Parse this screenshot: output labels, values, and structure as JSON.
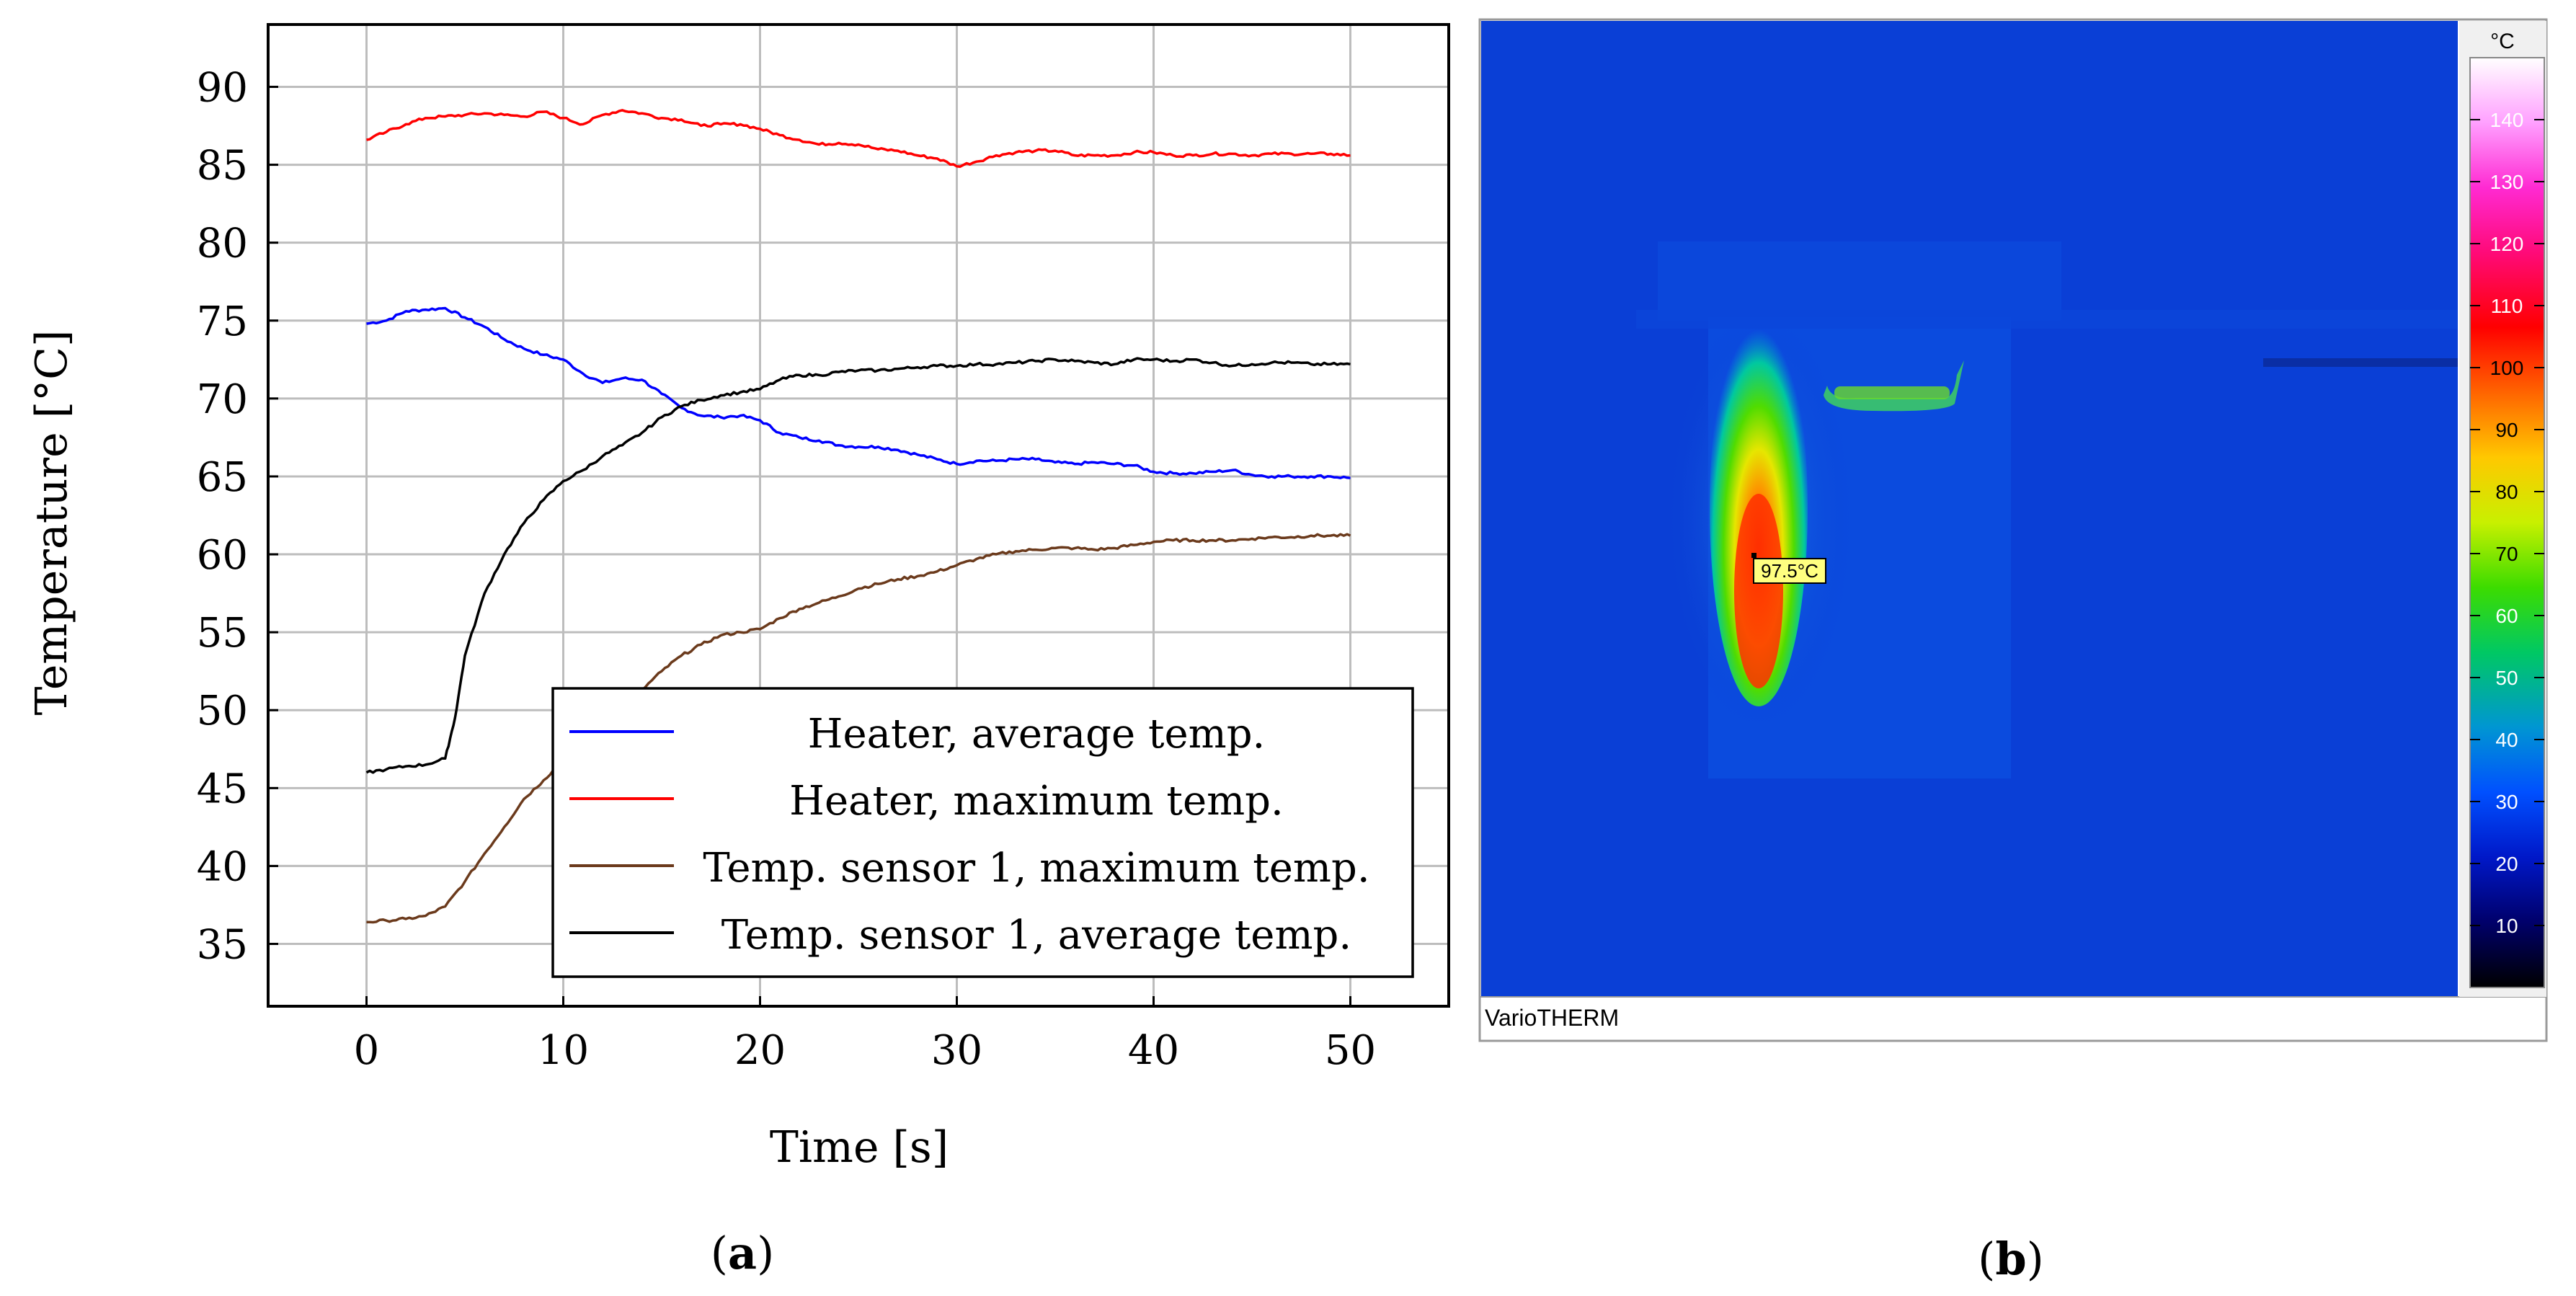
{
  "chart_data": [
    {
      "type": "line",
      "panel_label": "a",
      "xlabel": "Time [s]",
      "ylabel": "Temperature [°C]",
      "xlim": [
        -5,
        55
      ],
      "ylim": [
        31,
        94
      ],
      "xticks": [
        0,
        10,
        20,
        30,
        40,
        50
      ],
      "yticks": [
        35,
        40,
        45,
        50,
        55,
        60,
        65,
        70,
        75,
        80,
        85,
        90
      ],
      "grid": true,
      "legend_position": "bottom-right",
      "series": [
        {
          "name": "Heater, average temp.",
          "color": "#0000ff",
          "x": [
            0,
            1,
            2,
            3,
            4,
            5,
            6,
            7,
            8,
            9,
            10,
            11,
            12,
            13,
            14,
            15,
            16,
            17,
            18,
            19,
            20,
            21,
            22,
            23,
            24,
            25,
            26,
            27,
            28,
            29,
            30,
            31,
            32,
            33,
            34,
            35,
            36,
            37,
            38,
            39,
            40,
            41,
            42,
            43,
            44,
            45,
            46,
            47,
            48,
            49,
            50
          ],
          "y": [
            74.8,
            75.0,
            75.6,
            75.7,
            75.8,
            75.2,
            74.6,
            73.8,
            73.2,
            72.8,
            72.5,
            71.6,
            71.0,
            71.3,
            71.2,
            70.3,
            69.4,
            68.9,
            68.8,
            68.9,
            68.6,
            67.8,
            67.5,
            67.3,
            67.0,
            66.9,
            66.9,
            66.7,
            66.4,
            66.1,
            65.8,
            66.0,
            66.0,
            66.1,
            66.1,
            65.9,
            65.8,
            65.9,
            65.8,
            65.7,
            65.3,
            65.2,
            65.2,
            65.3,
            65.4,
            65.1,
            65.0,
            65.0,
            65.0,
            65.0,
            64.9
          ]
        },
        {
          "name": "Heater, maximum temp.",
          "color": "#ff0000",
          "x": [
            0,
            1,
            2,
            3,
            4,
            5,
            6,
            7,
            8,
            9,
            10,
            11,
            12,
            13,
            14,
            15,
            16,
            17,
            18,
            19,
            20,
            21,
            22,
            23,
            24,
            25,
            26,
            27,
            28,
            29,
            30,
            31,
            32,
            33,
            34,
            35,
            36,
            37,
            38,
            39,
            40,
            41,
            42,
            43,
            44,
            45,
            46,
            47,
            48,
            49,
            50
          ],
          "y": [
            86.6,
            87.1,
            87.6,
            88.0,
            88.1,
            88.2,
            88.3,
            88.2,
            88.1,
            88.4,
            88.0,
            87.6,
            88.2,
            88.5,
            88.3,
            88.0,
            87.9,
            87.5,
            87.6,
            87.6,
            87.3,
            86.9,
            86.6,
            86.3,
            86.4,
            86.3,
            86.0,
            85.9,
            85.6,
            85.4,
            84.9,
            85.2,
            85.6,
            85.8,
            85.9,
            85.9,
            85.6,
            85.6,
            85.6,
            85.8,
            85.8,
            85.6,
            85.6,
            85.7,
            85.7,
            85.6,
            85.7,
            85.7,
            85.7,
            85.7,
            85.6
          ]
        },
        {
          "name": "Temp. sensor 1, maximum temp.",
          "color": "#6b3a1c",
          "x": [
            0,
            1,
            2,
            3,
            4,
            5,
            6,
            7,
            8,
            9,
            10,
            11,
            12,
            13,
            14,
            15,
            16,
            17,
            18,
            19,
            20,
            21,
            22,
            23,
            24,
            25,
            26,
            27,
            28,
            29,
            30,
            31,
            32,
            33,
            34,
            35,
            36,
            37,
            38,
            39,
            40,
            41,
            42,
            43,
            44,
            45,
            46,
            47,
            48,
            49,
            50
          ],
          "y": [
            36.4,
            36.5,
            36.6,
            36.8,
            37.4,
            39.0,
            40.8,
            42.5,
            44.3,
            45.5,
            46.8,
            48.0,
            49.5,
            50.5,
            51.3,
            52.5,
            53.5,
            54.2,
            54.8,
            55.0,
            55.2,
            55.9,
            56.5,
            56.9,
            57.3,
            57.8,
            58.1,
            58.4,
            58.6,
            58.9,
            59.3,
            59.7,
            60.0,
            60.2,
            60.3,
            60.4,
            60.4,
            60.3,
            60.4,
            60.6,
            60.8,
            60.9,
            60.9,
            60.9,
            60.9,
            61.0,
            61.1,
            61.1,
            61.2,
            61.2,
            61.2
          ]
        },
        {
          "name": "Temp. sensor 1, average temp.",
          "color": "#000000",
          "x": [
            0,
            1,
            2,
            3,
            4,
            4.5,
            5,
            6,
            7,
            8,
            9,
            10,
            11,
            12,
            13,
            14,
            15,
            16,
            17,
            18,
            19,
            20,
            21,
            22,
            23,
            24,
            25,
            26,
            27,
            28,
            29,
            30,
            31,
            32,
            33,
            34,
            35,
            36,
            37,
            38,
            39,
            40,
            41,
            42,
            43,
            44,
            45,
            46,
            47,
            48,
            49,
            50
          ],
          "y": [
            46.0,
            46.2,
            46.4,
            46.5,
            46.9,
            49.5,
            53.5,
            57.5,
            60.0,
            62.0,
            63.5,
            64.7,
            65.4,
            66.3,
            67.0,
            67.8,
            68.8,
            69.5,
            69.9,
            70.2,
            70.4,
            70.6,
            71.2,
            71.5,
            71.5,
            71.7,
            71.8,
            71.8,
            71.9,
            72.0,
            72.1,
            72.1,
            72.2,
            72.2,
            72.3,
            72.4,
            72.5,
            72.4,
            72.3,
            72.2,
            72.5,
            72.5,
            72.4,
            72.5,
            72.3,
            72.1,
            72.2,
            72.3,
            72.3,
            72.2,
            72.2,
            72.2
          ]
        }
      ]
    },
    {
      "type": "heatmap",
      "panel_label": "b",
      "software_label": "VarioTHERM",
      "spot_label": "97.5°C",
      "colorbar": {
        "unit": "°C",
        "ticks": [
          10,
          20,
          30,
          40,
          50,
          60,
          70,
          80,
          90,
          100,
          110,
          120,
          130,
          140
        ],
        "range": [
          0,
          150
        ],
        "colors": [
          "#000000",
          "#00006a",
          "#0018c8",
          "#0050ff",
          "#0096d2",
          "#00c864",
          "#3cdc00",
          "#c8f000",
          "#ffc800",
          "#ff6400",
          "#ff0000",
          "#ff0a78",
          "#ff2ad2",
          "#ffa0ff",
          "#ffffff"
        ]
      },
      "background_color": "#0a3fd6"
    }
  ]
}
